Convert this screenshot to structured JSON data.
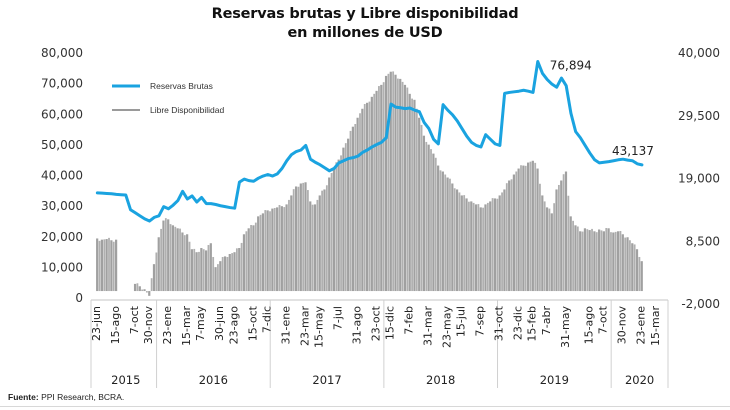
{
  "chart_data": {
    "type": "bar+line",
    "title": "Reservas brutas y Libre disponibilidad",
    "subtitle": "en millones de USD",
    "legend": {
      "placement": "top-left",
      "entries": [
        {
          "name": "Reservas  Brutas",
          "color": "#1aa3e0",
          "kind": "line",
          "axis": "left"
        },
        {
          "name": "Libre  Disponibilidad",
          "color": "#9a9a9a",
          "kind": "bar",
          "axis": "right"
        }
      ]
    },
    "left_axis": {
      "min": 0,
      "max": 80000,
      "ticks": [
        0,
        10000,
        20000,
        30000,
        40000,
        50000,
        60000,
        70000,
        80000
      ],
      "tick_labels": [
        "0",
        "10,000",
        "20,000",
        "30,000",
        "40,000",
        "50,000",
        "60,000",
        "70,000",
        "80,000"
      ]
    },
    "right_axis": {
      "min": -2000,
      "max": 40000,
      "ticks": [
        -2000,
        8500,
        19000,
        29500,
        40000
      ],
      "tick_labels": [
        "-2,000",
        "8,500",
        "19,000",
        "29,500",
        "40,000"
      ]
    },
    "x_tick_labels": [
      "23-jun",
      "15-ago",
      "7-oct",
      "30-nov",
      "23-ene",
      "15-mar",
      "7-may",
      "30-jun",
      "23-ago",
      "15-oct",
      "7-dic",
      "31-ene",
      "23-mar",
      "15-may",
      "7-jul",
      "31-ago",
      "23-oct",
      "15-dic",
      "7-feb",
      "31-mar",
      "23-may",
      "15-jul",
      "7-sep",
      "31-oct",
      "23-dic",
      "15-feb",
      "7-abr",
      "31-may",
      "15-ago",
      "7-oct",
      "30-nov",
      "23-ene",
      "15-mar"
    ],
    "x_tick_index": [
      0,
      4,
      8,
      11,
      15,
      19,
      22,
      26,
      29,
      33,
      36,
      40,
      44,
      47,
      51,
      55,
      59,
      62,
      66,
      70,
      74,
      77,
      81,
      85,
      89,
      92,
      95,
      99,
      104,
      107,
      111,
      115,
      118
    ],
    "years": [
      {
        "label": "2015",
        "start": 0,
        "end": 13
      },
      {
        "label": "2016",
        "start": 13,
        "end": 37
      },
      {
        "label": "2017",
        "start": 37,
        "end": 61
      },
      {
        "label": "2018",
        "start": 61,
        "end": 85
      },
      {
        "label": "2019",
        "start": 85,
        "end": 109
      },
      {
        "label": "2020",
        "start": 109,
        "end": 121
      }
    ],
    "period": "semi-monthly, jun-2015 to mar-2020",
    "series": [
      {
        "name": "Reservas Brutas",
        "axis": "left",
        "values": [
          34000,
          33900,
          33800,
          33700,
          33500,
          33400,
          33300,
          28500,
          27500,
          26500,
          25500,
          24800,
          26000,
          26500,
          29500,
          28800,
          30000,
          31500,
          34500,
          32000,
          33000,
          31000,
          32500,
          30500,
          30500,
          30200,
          29800,
          29500,
          29200,
          29000,
          37500,
          38500,
          38000,
          37800,
          38800,
          39500,
          40000,
          39500,
          40200,
          42000,
          44500,
          46500,
          47500,
          48000,
          49500,
          45000,
          44000,
          43200,
          42200,
          41200,
          42000,
          43800,
          44500,
          45200,
          45500,
          46000,
          47200,
          48000,
          49000,
          49800,
          50500,
          52000,
          63000,
          62000,
          61800,
          61500,
          61700,
          61000,
          60500,
          57000,
          55000,
          51500,
          50000,
          62800,
          61000,
          59500,
          57500,
          55000,
          52500,
          50500,
          49500,
          49000,
          53000,
          51500,
          50000,
          49500,
          66500,
          66800,
          67000,
          67200,
          67500,
          67200,
          66800,
          76894,
          73000,
          71000,
          69500,
          68500,
          71500,
          69000,
          60000,
          54000,
          52000,
          49500,
          47000,
          44800,
          43800,
          44000,
          44200,
          44500,
          44800,
          45000,
          44700,
          44500,
          43500,
          43137
        ]
      },
      {
        "name": "Libre Disponibilidad",
        "axis": "right",
        "values": [
          8800,
          8600,
          8700,
          8500,
          8600,
          0,
          0,
          0,
          1200,
          800,
          300,
          -800,
          4500,
          9000,
          11800,
          12000,
          11000,
          10500,
          9800,
          9500,
          7000,
          6500,
          7200,
          6800,
          8000,
          4000,
          5000,
          5800,
          6200,
          6500,
          7200,
          9500,
          10500,
          11000,
          12500,
          13000,
          13500,
          13800,
          14000,
          14200,
          14500,
          16000,
          17500,
          18000,
          18200,
          15000,
          14500,
          16000,
          17000,
          19000,
          20500,
          22000,
          24000,
          25500,
          27500,
          29000,
          30500,
          31500,
          32500,
          33500,
          34500,
          36000,
          36700,
          36200,
          35500,
          34500,
          33000,
          32000,
          29000,
          26000,
          24500,
          23000,
          21000,
          20000,
          19000,
          18000,
          17000,
          16000,
          15500,
          15000,
          14500,
          14000,
          14500,
          15000,
          15500,
          16000,
          17000,
          18500,
          19500,
          20500,
          21000,
          21500,
          21800,
          20500,
          16000,
          14000,
          13000,
          17000,
          18500,
          20000,
          12500,
          11000,
          10000,
          10500,
          10200,
          10000,
          10300,
          10000,
          10500,
          9800,
          10000,
          9500,
          9000,
          8000,
          7000,
          5000
        ]
      }
    ],
    "annotations": [
      {
        "text": "76,894",
        "series": "Reservas Brutas",
        "note": "peak"
      },
      {
        "text": "43,137",
        "series": "Reservas Brutas",
        "note": "last value"
      }
    ],
    "source": {
      "label": "Fuente:",
      "text": "PPI Research, BCRA."
    }
  }
}
